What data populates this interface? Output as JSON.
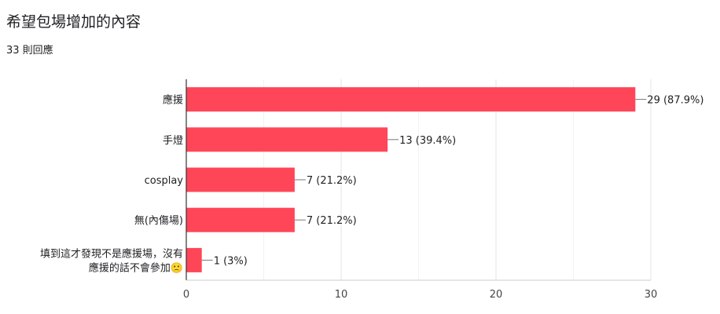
{
  "header": {
    "title": "希望包場增加的內容",
    "response_count": "33 則回應"
  },
  "colors": {
    "bar": "#ff4659",
    "grid": "#e6e6e6",
    "axis": "#333333",
    "text": "#202124"
  },
  "chart_data": {
    "type": "bar",
    "orientation": "horizontal",
    "categories": [
      "應援",
      "手燈",
      "cosplay",
      "無(內傷場)",
      "填到這才發現不是應援場，沒有應援的話不會參加🙁"
    ],
    "category_lines": [
      [
        "應援"
      ],
      [
        "手燈"
      ],
      [
        "cosplay"
      ],
      [
        "無(內傷場)"
      ],
      [
        "填到這才發現不是應援場，沒有",
        "應援的話不會參加🙁"
      ]
    ],
    "values": [
      29,
      13,
      7,
      7,
      1
    ],
    "data_labels": [
      "29 (87.9%)",
      "13 (39.4%)",
      "7 (21.2%)",
      "7 (21.2%)",
      "1 (3%)"
    ],
    "xlim": [
      0,
      30
    ],
    "x_ticks": [
      0,
      10,
      20,
      30
    ],
    "grid": true
  }
}
